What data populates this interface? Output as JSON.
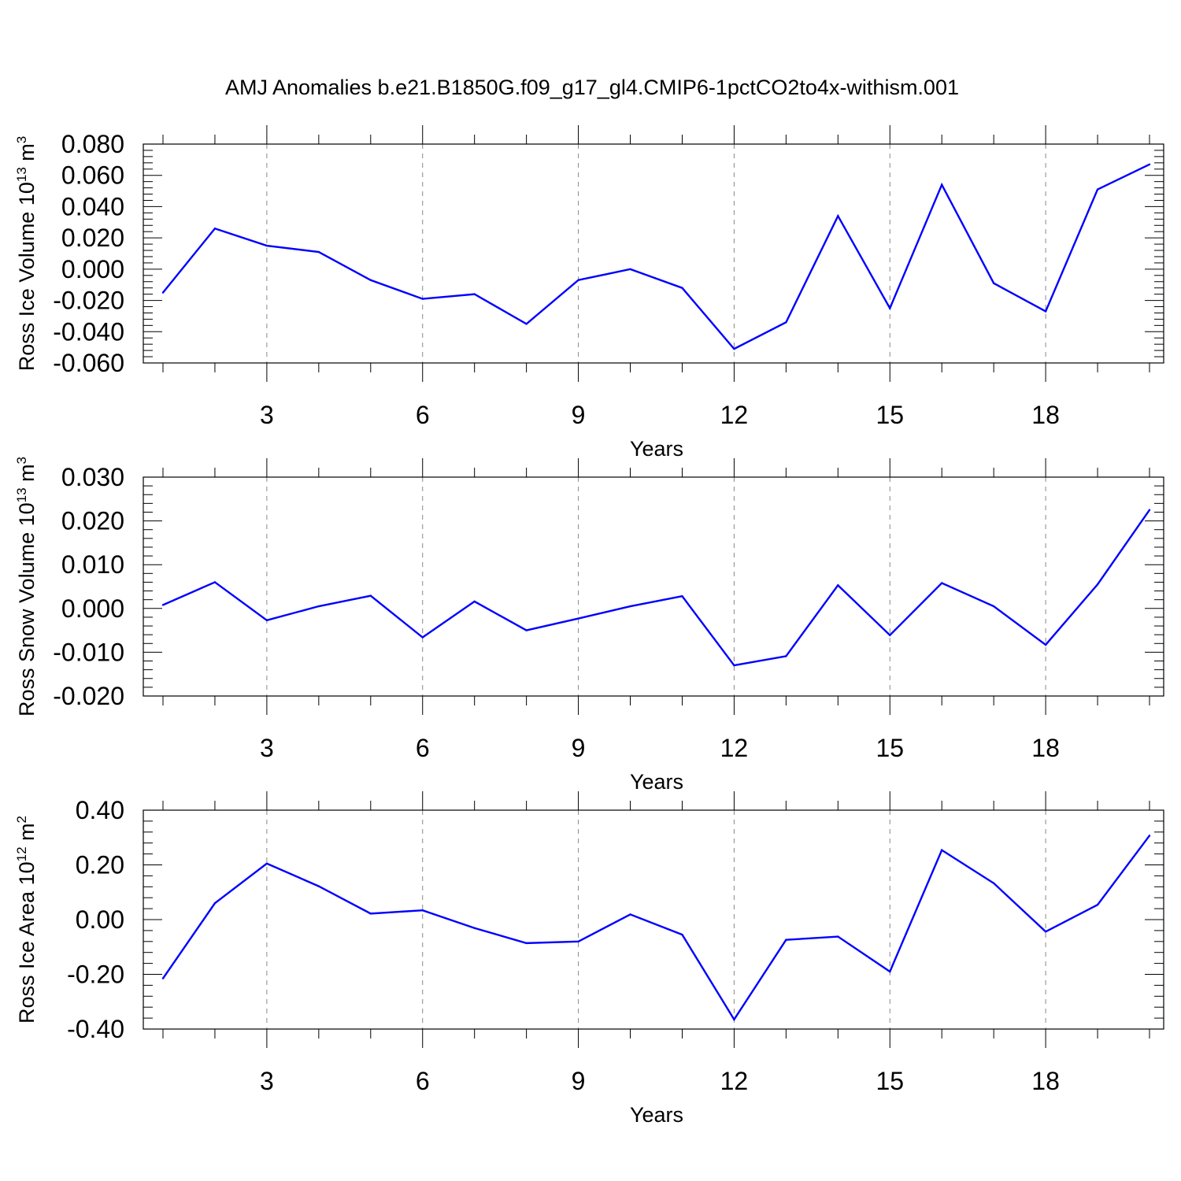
{
  "figure": {
    "title": "AMJ Anomalies b.e21.B1850G.f09_g17_gl4.CMIP6-1pctCO2to4x-withism.001"
  },
  "colors": {
    "series": "#0000ff",
    "axes": "#000000",
    "grid": "#888888",
    "background": "#ffffff"
  },
  "chart_data": [
    {
      "type": "line",
      "xlabel": "Years",
      "ylabel": {
        "text": "Ross Ice Volume 10",
        "exp": "13",
        "unit": " m",
        "unit_exp": "3"
      },
      "xlim": [
        1,
        20
      ],
      "ylim": [
        -0.06,
        0.08
      ],
      "xticks": [
        3,
        6,
        9,
        12,
        15,
        18
      ],
      "xtick_labels": [
        "3",
        "6",
        "9",
        "12",
        "15",
        "18"
      ],
      "yticks": [
        -0.06,
        -0.04,
        -0.02,
        0.0,
        0.02,
        0.04,
        0.06,
        0.08
      ],
      "ytick_labels": [
        "-0.060",
        "-0.040",
        "-0.020",
        "0.000",
        "0.020",
        "0.040",
        "0.060",
        "0.080"
      ],
      "grid": "vertical dashed at major x ticks",
      "series": [
        {
          "x": [
            1,
            2,
            3,
            4,
            5,
            6,
            7,
            8,
            9,
            10,
            11,
            12,
            13,
            14,
            15,
            16,
            17,
            18,
            19,
            20
          ],
          "values": [
            -0.015,
            0.026,
            0.015,
            0.011,
            -0.007,
            -0.019,
            -0.016,
            -0.035,
            -0.007,
            0.0,
            -0.012,
            -0.051,
            -0.034,
            0.034,
            -0.025,
            0.054,
            -0.009,
            -0.027,
            0.051,
            0.067
          ]
        }
      ]
    },
    {
      "type": "line",
      "xlabel": "Years",
      "ylabel": {
        "text": "Ross Snow Volume 10",
        "exp": "13",
        "unit": " m",
        "unit_exp": "3"
      },
      "xlim": [
        1,
        20
      ],
      "ylim": [
        -0.02,
        0.03
      ],
      "xticks": [
        3,
        6,
        9,
        12,
        15,
        18
      ],
      "xtick_labels": [
        "3",
        "6",
        "9",
        "12",
        "15",
        "18"
      ],
      "yticks": [
        -0.02,
        -0.01,
        0.0,
        0.01,
        0.02,
        0.03
      ],
      "ytick_labels": [
        "-0.020",
        "-0.010",
        "0.000",
        "0.010",
        "0.020",
        "0.030"
      ],
      "grid": "vertical dashed at major x ticks",
      "series": [
        {
          "x": [
            1,
            2,
            3,
            4,
            5,
            6,
            7,
            8,
            9,
            10,
            11,
            12,
            13,
            14,
            15,
            16,
            17,
            18,
            19,
            20
          ],
          "values": [
            0.0008,
            0.006,
            -0.0027,
            0.0005,
            0.0029,
            -0.0066,
            0.0016,
            -0.005,
            -0.0023,
            0.0005,
            0.0028,
            -0.013,
            -0.0109,
            0.0053,
            -0.0061,
            0.0058,
            0.0005,
            -0.0083,
            0.0055,
            0.0225
          ]
        }
      ]
    },
    {
      "type": "line",
      "xlabel": "Years",
      "ylabel": {
        "text": "Ross Ice Area 10",
        "exp": "12",
        "unit": " m",
        "unit_exp": "2"
      },
      "xlim": [
        1,
        20
      ],
      "ylim": [
        -0.4,
        0.4
      ],
      "xticks": [
        3,
        6,
        9,
        12,
        15,
        18
      ],
      "xtick_labels": [
        "3",
        "6",
        "9",
        "12",
        "15",
        "18"
      ],
      "yticks": [
        -0.4,
        -0.2,
        0.0,
        0.2,
        0.4
      ],
      "ytick_labels": [
        "-0.40",
        "-0.20",
        "0.00",
        "0.20",
        "0.40"
      ],
      "grid": "vertical dashed at major x ticks",
      "series": [
        {
          "x": [
            1,
            2,
            3,
            4,
            5,
            6,
            7,
            8,
            9,
            10,
            11,
            12,
            13,
            14,
            15,
            16,
            17,
            18,
            19,
            20
          ],
          "values": [
            -0.215,
            0.06,
            0.205,
            0.122,
            0.022,
            0.034,
            -0.031,
            -0.086,
            -0.08,
            0.019,
            -0.055,
            -0.365,
            -0.074,
            -0.062,
            -0.19,
            0.254,
            0.133,
            -0.044,
            0.054,
            0.307
          ]
        }
      ]
    }
  ]
}
